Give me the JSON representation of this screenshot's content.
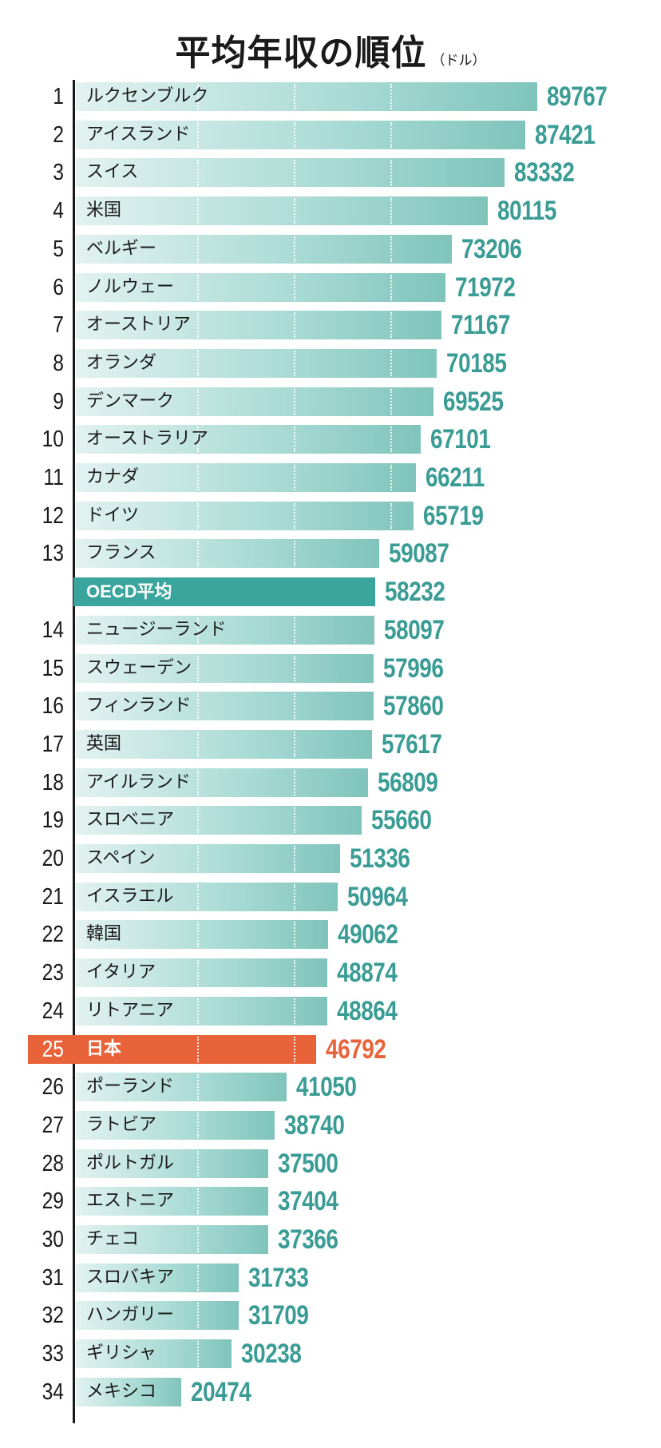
{
  "chart_data": {
    "type": "bar",
    "orientation": "horizontal",
    "title": "平均年収の順位",
    "unit": "（ドル）",
    "xlim": [
      0,
      90000
    ],
    "colors": {
      "bar": "#7fc4bc",
      "label": "#3a9c94",
      "highlight": "#e8633a",
      "average": "#3aa59c"
    },
    "rows": [
      {
        "rank": "1",
        "name": "ルクセンブルク",
        "value": 89767
      },
      {
        "rank": "2",
        "name": "アイスランド",
        "value": 87421
      },
      {
        "rank": "3",
        "name": "スイス",
        "value": 83332
      },
      {
        "rank": "4",
        "name": "米国",
        "value": 80115
      },
      {
        "rank": "5",
        "name": "ベルギー",
        "value": 73206
      },
      {
        "rank": "6",
        "name": "ノルウェー",
        "value": 71972
      },
      {
        "rank": "7",
        "name": "オーストリア",
        "value": 71167
      },
      {
        "rank": "8",
        "name": "オランダ",
        "value": 70185
      },
      {
        "rank": "9",
        "name": "デンマーク",
        "value": 69525
      },
      {
        "rank": "10",
        "name": "オーストラリア",
        "value": 67101
      },
      {
        "rank": "11",
        "name": "カナダ",
        "value": 66211
      },
      {
        "rank": "12",
        "name": "ドイツ",
        "value": 65719
      },
      {
        "rank": "13",
        "name": "フランス",
        "value": 59087
      },
      {
        "rank": "",
        "name": "OECD平均",
        "value": 58232,
        "kind": "average"
      },
      {
        "rank": "14",
        "name": "ニュージーランド",
        "value": 58097
      },
      {
        "rank": "15",
        "name": "スウェーデン",
        "value": 57996
      },
      {
        "rank": "16",
        "name": "フィンランド",
        "value": 57860
      },
      {
        "rank": "17",
        "name": "英国",
        "value": 57617
      },
      {
        "rank": "18",
        "name": "アイルランド",
        "value": 56809
      },
      {
        "rank": "19",
        "name": "スロベニア",
        "value": 55660
      },
      {
        "rank": "20",
        "name": "スペイン",
        "value": 51336
      },
      {
        "rank": "21",
        "name": "イスラエル",
        "value": 50964
      },
      {
        "rank": "22",
        "name": "韓国",
        "value": 49062
      },
      {
        "rank": "23",
        "name": "イタリア",
        "value": 48874
      },
      {
        "rank": "24",
        "name": "リトアニア",
        "value": 48864
      },
      {
        "rank": "25",
        "name": "日本",
        "value": 46792,
        "kind": "highlight"
      },
      {
        "rank": "26",
        "name": "ポーランド",
        "value": 41050
      },
      {
        "rank": "27",
        "name": "ラトビア",
        "value": 38740
      },
      {
        "rank": "28",
        "name": "ポルトガル",
        "value": 37500
      },
      {
        "rank": "29",
        "name": "エストニア",
        "value": 37404
      },
      {
        "rank": "30",
        "name": "チェコ",
        "value": 37366
      },
      {
        "rank": "31",
        "name": "スロバキア",
        "value": 31733
      },
      {
        "rank": "32",
        "name": "ハンガリー",
        "value": 31709
      },
      {
        "rank": "33",
        "name": "ギリシャ",
        "value": 30238
      },
      {
        "rank": "34",
        "name": "メキシコ",
        "value": 20474
      }
    ]
  }
}
